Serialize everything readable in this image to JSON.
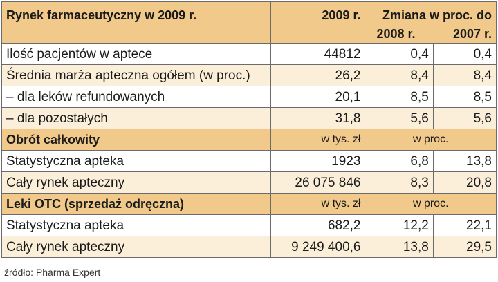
{
  "header": {
    "title": "Rynek farmaceutyczny w 2009 r.",
    "year": "2009 r.",
    "change": "Zmiana w proc. do",
    "y2008": "2008 r.",
    "y2007": "2007 r."
  },
  "rows_top": [
    {
      "label": "Ilość pacjentów w aptece",
      "v2009": "44812",
      "v2008": "0,4",
      "v2007": "0,4"
    },
    {
      "label": "Średnia marża apteczna ogółem (w proc.)",
      "v2009": "26,2",
      "v2008": "8,4",
      "v2007": "8,4"
    },
    {
      "label": "– dla leków refundowanych",
      "v2009": "20,1",
      "v2008": "8,5",
      "v2007": "8,5"
    },
    {
      "label": "– dla pozostałych",
      "v2009": "31,8",
      "v2008": "5,6",
      "v2007": "5,6"
    }
  ],
  "section1": {
    "title": "Obrót całkowity",
    "unit1": "w tys. zł",
    "unit2": "w proc.",
    "rows": [
      {
        "label": "Statystyczna apteka",
        "v2009": "1923",
        "v2008": "6,8",
        "v2007": "13,8"
      },
      {
        "label": "Cały rynek apteczny",
        "v2009": "26 075 846",
        "v2008": "8,3",
        "v2007": "20,8"
      }
    ]
  },
  "section2": {
    "title": "Leki OTC (sprzedaż odręczna)",
    "unit1": "w tys. zł",
    "unit2": "w proc.",
    "rows": [
      {
        "label": "Statystyczna apteka",
        "v2009": "682,2",
        "v2008": "12,2",
        "v2007": "22,1"
      },
      {
        "label": "Cały rynek apteczny",
        "v2009": "9 249 400,6",
        "v2008": "13,8",
        "v2007": "29,5"
      }
    ]
  },
  "source": "źródło: Pharma Expert"
}
